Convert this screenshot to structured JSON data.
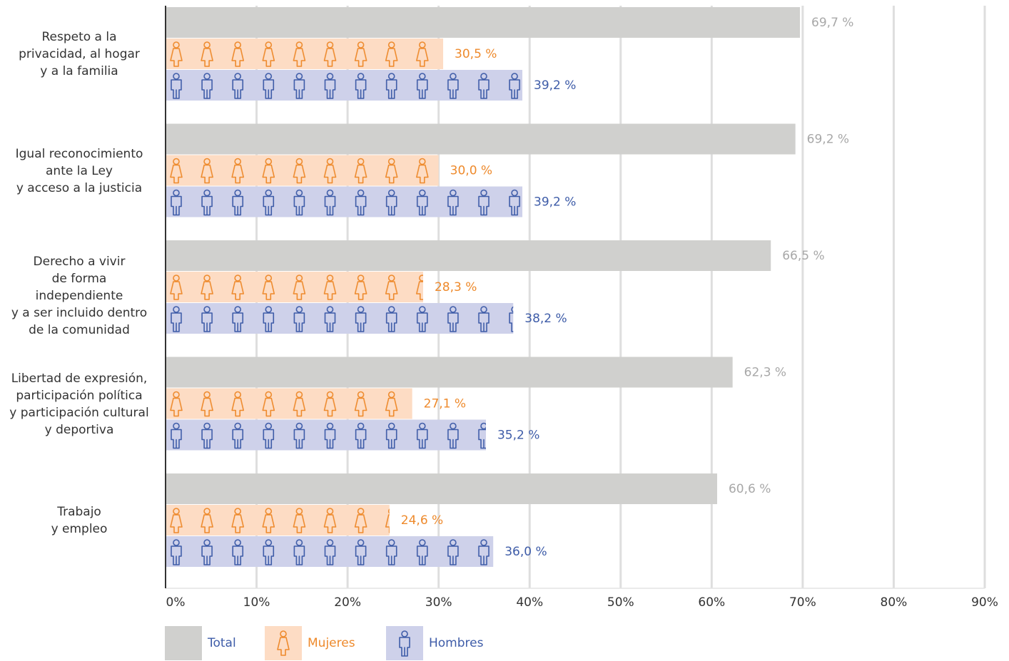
{
  "chart_data": {
    "type": "bar",
    "orientation": "horizontal",
    "categories": [
      "Respeto a la\nprivacidad, al hogar\ny a la familia",
      "Igual reconocimiento\nante la Ley\ny acceso a la justicia",
      "Derecho a vivir\nde forma\nindependiente\ny a ser incluido dentro\nde la comunidad",
      "Libertad de expresión,\nparticipación política\ny participación cultural\ny deportiva",
      "Trabajo\ny empleo"
    ],
    "series": [
      {
        "name": "Total",
        "color": "#d0d0ce",
        "label_color": "#a8a8a8",
        "values": [
          69.7,
          69.2,
          66.5,
          62.3,
          60.6
        ],
        "value_labels": [
          "69,7 %",
          "69,2 %",
          "66,5 %",
          "62,3 %",
          "60,6 %"
        ]
      },
      {
        "name": "Mujeres",
        "color": "#fddcc4",
        "icon_color": "#ee8a2c",
        "label_color": "#ee8a2c",
        "values": [
          30.5,
          30.0,
          28.3,
          27.1,
          24.6
        ],
        "value_labels": [
          "30,5 %",
          "30,0 %",
          "28,3 %",
          "27,1 %",
          "24,6 %"
        ]
      },
      {
        "name": "Hombres",
        "color": "#ced1ea",
        "icon_color": "#3e5ca8",
        "label_color": "#3e5ca8",
        "values": [
          39.2,
          39.2,
          38.2,
          35.2,
          36.0
        ],
        "value_labels": [
          "39,2 %",
          "39,2 %",
          "38,2 %",
          "35,2 %",
          "36,0 %"
        ]
      }
    ],
    "xlim": [
      0,
      90
    ],
    "xticks": [
      {
        "value": 0,
        "label": "0%"
      },
      {
        "value": 10,
        "label": "10%"
      },
      {
        "value": 20,
        "label": "20%"
      },
      {
        "value": 30,
        "label": "30%"
      },
      {
        "value": 40,
        "label": "40%"
      },
      {
        "value": 50,
        "label": "50%"
      },
      {
        "value": 60,
        "label": "60%"
      },
      {
        "value": 70,
        "label": "70%"
      },
      {
        "value": 80,
        "label": "80%"
      },
      {
        "value": 90,
        "label": "90%"
      }
    ],
    "grid": true
  }
}
